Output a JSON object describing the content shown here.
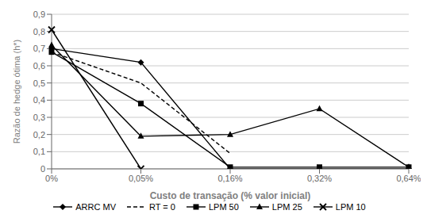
{
  "chart_data": {
    "type": "line",
    "xlabel": "Custo de transação (% valor inicial)",
    "ylabel": "Razão de hedge ótima (h*)",
    "categories": [
      "0%",
      "0,05%",
      "0,16%",
      "0,32%",
      "0,64%"
    ],
    "series": [
      {
        "name": "ARRC MV",
        "color": "#000000",
        "marker": "diamond",
        "line_style": "solid",
        "values": [
          0.7,
          0.62,
          0.0,
          0.0,
          0.0
        ]
      },
      {
        "name": "RT = 0",
        "color": "#000000",
        "line_style": "dashed",
        "values": [
          0.68,
          0.5,
          0.09,
          null,
          null
        ]
      },
      {
        "name": "LPM 50",
        "color": "#000000",
        "marker": "square",
        "line_style": "solid",
        "values": [
          0.68,
          0.38,
          0.01,
          0.01,
          0.01
        ]
      },
      {
        "name": "LPM 25",
        "color": "#000000",
        "marker": "triangle",
        "line_style": "solid",
        "values": [
          0.72,
          0.19,
          0.2,
          0.35,
          0.01
        ]
      },
      {
        "name": "LPM 10",
        "color": "#000000",
        "marker": "x",
        "line_style": "solid",
        "values": [
          0.81,
          0.0,
          null,
          null,
          null
        ]
      }
    ],
    "ylim": [
      0,
      0.9
    ],
    "yticks": [
      0,
      {
        "value": 0.1,
        "label": "0,1"
      },
      {
        "value": 0.2,
        "label": "0,2"
      },
      {
        "value": 0.3,
        "label": "0,3"
      },
      {
        "value": 0.4,
        "label": "0,4"
      },
      {
        "value": 0.5,
        "label": "0,5"
      },
      {
        "value": 0.6,
        "label": "0,6"
      },
      {
        "value": 0.7,
        "label": "0,7"
      },
      {
        "value": 0.8,
        "label": "0,8"
      },
      {
        "value": 0.9,
        "label": "0,9"
      }
    ],
    "grid": true,
    "legend": "bottom"
  }
}
